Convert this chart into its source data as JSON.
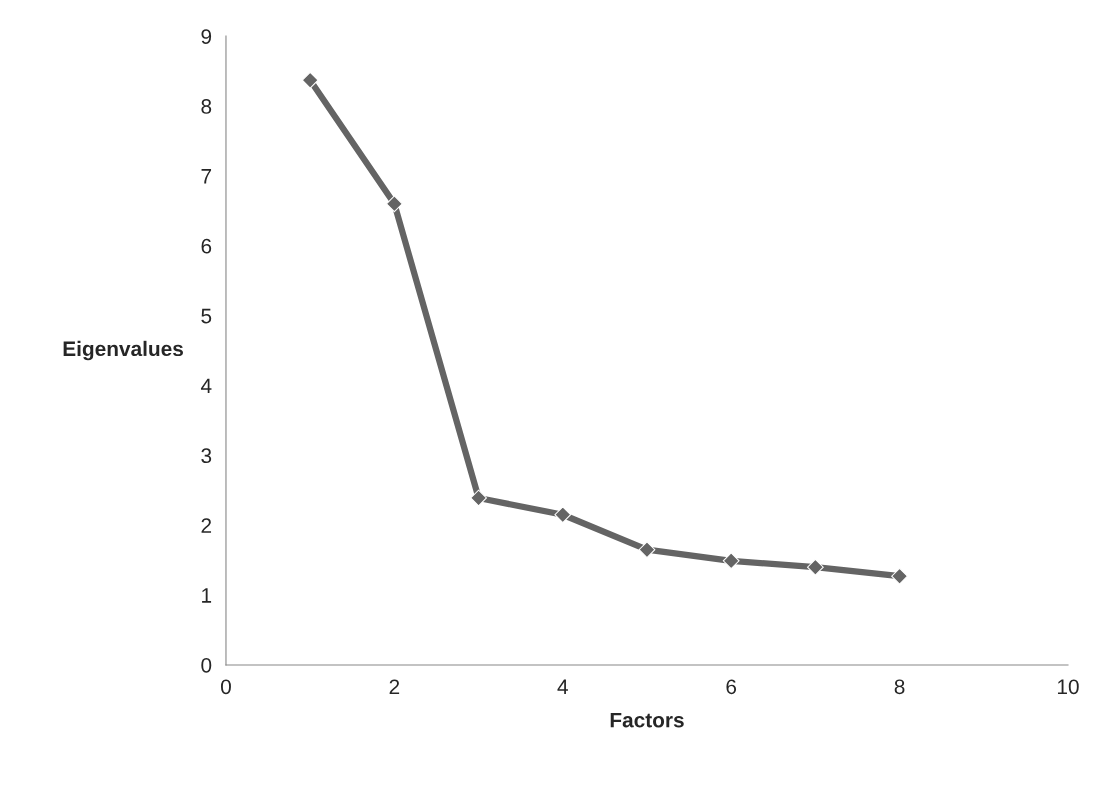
{
  "chart_data": {
    "type": "line",
    "xlabel": "Factors",
    "ylabel": "Eigenvalues",
    "x": [
      1,
      2,
      3,
      4,
      5,
      6,
      7,
      8
    ],
    "series": [
      {
        "color": "#646464",
        "values": [
          8.37,
          6.6,
          2.39,
          2.15,
          1.65,
          1.49,
          1.4,
          1.27
        ]
      }
    ],
    "xlim": [
      0,
      10
    ],
    "xticks": [
      0,
      2,
      4,
      6,
      8,
      10
    ],
    "ylim": [
      0,
      9
    ],
    "yticks": [
      0,
      1,
      2,
      3,
      4,
      5,
      6,
      7,
      8,
      9
    ],
    "marker": "diamond",
    "line_style": "solid",
    "grid": false,
    "legend": false
  }
}
